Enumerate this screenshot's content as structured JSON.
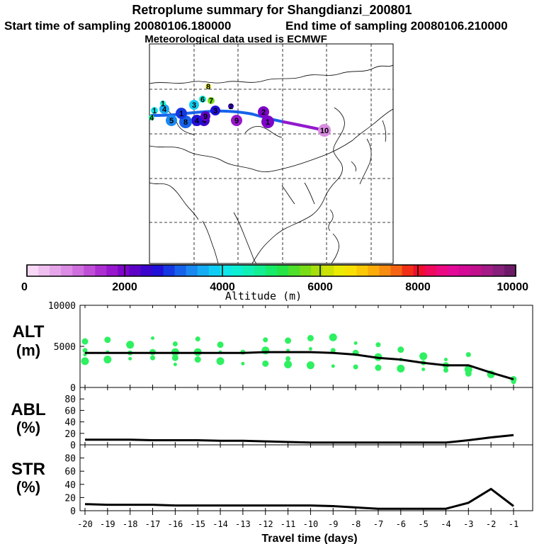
{
  "header": {
    "title": "Retroplume summary for Shangdianzi_200801",
    "start_label": "Start time of sampling 20080106.180000",
    "end_label": "End time of sampling 20080106.210000",
    "met_label": "Meteorological data used is ECMWF"
  },
  "colorbar": {
    "label": "Altitude (m)",
    "ticks": [
      "0",
      "2000",
      "4000",
      "6000",
      "8000",
      "10000"
    ],
    "colors": [
      "#f7d9f7",
      "#efc0ef",
      "#e6a6ea",
      "#dc8ce4",
      "#cf6fde",
      "#c04fd8",
      "#ac2fd2",
      "#9617cc",
      "#7d06c8",
      "#5d03c6",
      "#3c05cc",
      "#2110d8",
      "#1538e2",
      "#1762ea",
      "#1988f0",
      "#16acf4",
      "#10cdf3",
      "#0ee6ea",
      "#0eeed2",
      "#10f0b4",
      "#12ee92",
      "#16ec6a",
      "#26e446",
      "#4ee02a",
      "#78dc16",
      "#a6de0a",
      "#cce206",
      "#eaea04",
      "#f8e004",
      "#fbc806",
      "#fbac0a",
      "#f88c10",
      "#f46414",
      "#f23018",
      "#f00e2c",
      "#ee0a5c",
      "#ec0a82",
      "#e20a96",
      "#d20a96",
      "#c0108e",
      "#a41a86",
      "#86207a",
      "#6c1a68"
    ]
  },
  "map": {
    "trajectory_labels": [
      "1",
      "2",
      "3",
      "4",
      "5",
      "6",
      "7",
      "8",
      "9",
      "10"
    ]
  },
  "chart_data": [
    {
      "type": "line",
      "panel": "ALT",
      "ylabel": "ALT\n(m)",
      "ylabel_line1": "ALT",
      "ylabel_line2": "(m)",
      "ylim": [
        0,
        10000
      ],
      "yticks": [
        "0",
        "5000",
        "10000"
      ],
      "x": [
        -20,
        -19,
        -18,
        -17,
        -16,
        -15,
        -14,
        -13,
        -12,
        -11,
        -10,
        -9,
        -8,
        -7,
        -6,
        -5,
        -4,
        -3,
        -2,
        -1
      ],
      "values": [
        4200,
        4200,
        4200,
        4200,
        4200,
        4200,
        4200,
        4200,
        4300,
        4300,
        4300,
        4200,
        4000,
        3600,
        3400,
        3000,
        2700,
        2700,
        1800,
        1000
      ],
      "points": [
        [
          -20,
          4000
        ],
        [
          -20,
          3200
        ],
        [
          -20,
          5600
        ],
        [
          -20,
          4500
        ],
        [
          -19,
          4300
        ],
        [
          -19,
          3400
        ],
        [
          -19,
          5800
        ],
        [
          -18,
          4200
        ],
        [
          -18,
          3500
        ],
        [
          -18,
          5200
        ],
        [
          -17,
          4300
        ],
        [
          -17,
          3600
        ],
        [
          -17,
          6000
        ],
        [
          -16,
          4300
        ],
        [
          -16,
          3600
        ],
        [
          -16,
          5300
        ],
        [
          -16,
          2800
        ],
        [
          -15,
          4300
        ],
        [
          -15,
          3400
        ],
        [
          -15,
          5900
        ],
        [
          -14,
          4300
        ],
        [
          -14,
          3200
        ],
        [
          -14,
          5200
        ],
        [
          -13,
          4300
        ],
        [
          -13,
          2900
        ],
        [
          -12,
          4500
        ],
        [
          -12,
          2900
        ],
        [
          -12,
          5800
        ],
        [
          -11,
          4500
        ],
        [
          -11,
          2800
        ],
        [
          -11,
          5700
        ],
        [
          -11,
          3500
        ],
        [
          -10,
          4700
        ],
        [
          -10,
          2700
        ],
        [
          -10,
          6000
        ],
        [
          -9,
          4500
        ],
        [
          -9,
          2600
        ],
        [
          -9,
          6100
        ],
        [
          -8,
          4200
        ],
        [
          -8,
          2500
        ],
        [
          -8,
          5400
        ],
        [
          -7,
          3700
        ],
        [
          -7,
          2400
        ],
        [
          -7,
          5200
        ],
        [
          -6,
          3400
        ],
        [
          -6,
          2300
        ],
        [
          -6,
          4600
        ],
        [
          -5,
          3000
        ],
        [
          -5,
          2200
        ],
        [
          -5,
          3800
        ],
        [
          -4,
          2700
        ],
        [
          -4,
          2100
        ],
        [
          -4,
          3400
        ],
        [
          -3,
          2200
        ],
        [
          -3,
          1700
        ],
        [
          -3,
          4000
        ],
        [
          -2,
          1800
        ],
        [
          -2,
          1600
        ],
        [
          -1,
          1000
        ],
        [
          -1,
          700
        ]
      ]
    },
    {
      "type": "line",
      "panel": "ABL",
      "ylabel": "ABL\n(%)",
      "ylabel_line1": "ABL",
      "ylabel_line2": "(%)",
      "ylim": [
        0,
        100
      ],
      "yticks": [
        "0",
        "20",
        "40",
        "60",
        "80"
      ],
      "x": [
        -20,
        -19,
        -18,
        -17,
        -16,
        -15,
        -14,
        -13,
        -12,
        -11,
        -10,
        -9,
        -8,
        -7,
        -6,
        -5,
        -4,
        -3,
        -2,
        -1
      ],
      "values": [
        9,
        9,
        9,
        8,
        8,
        8,
        7,
        7,
        6,
        5,
        4,
        4,
        4,
        4,
        4,
        4,
        4,
        8,
        13,
        17
      ]
    },
    {
      "type": "line",
      "panel": "STR",
      "ylabel": "STR\n(%)",
      "ylabel_line1": "STR",
      "ylabel_line2": "(%)",
      "ylim": [
        0,
        100
      ],
      "yticks": [
        "0",
        "20",
        "40",
        "60",
        "80"
      ],
      "xlabel": "Travel time (days)",
      "x": [
        -20,
        -19,
        -18,
        -17,
        -16,
        -15,
        -14,
        -13,
        -12,
        -11,
        -10,
        -9,
        -8,
        -7,
        -6,
        -5,
        -4,
        -3,
        -2,
        -1
      ],
      "xticks": [
        "-20",
        "-19",
        "-18",
        "-17",
        "-16",
        "-15",
        "-14",
        "-13",
        "-12",
        "-11",
        "-10",
        "-9",
        "-8",
        "-7",
        "-6",
        "-5",
        "-4",
        "-3",
        "-2",
        "-1"
      ],
      "values": [
        10,
        9,
        9,
        9,
        8,
        8,
        8,
        8,
        8,
        8,
        8,
        7,
        5,
        3,
        3,
        3,
        3,
        12,
        33,
        7
      ]
    }
  ]
}
